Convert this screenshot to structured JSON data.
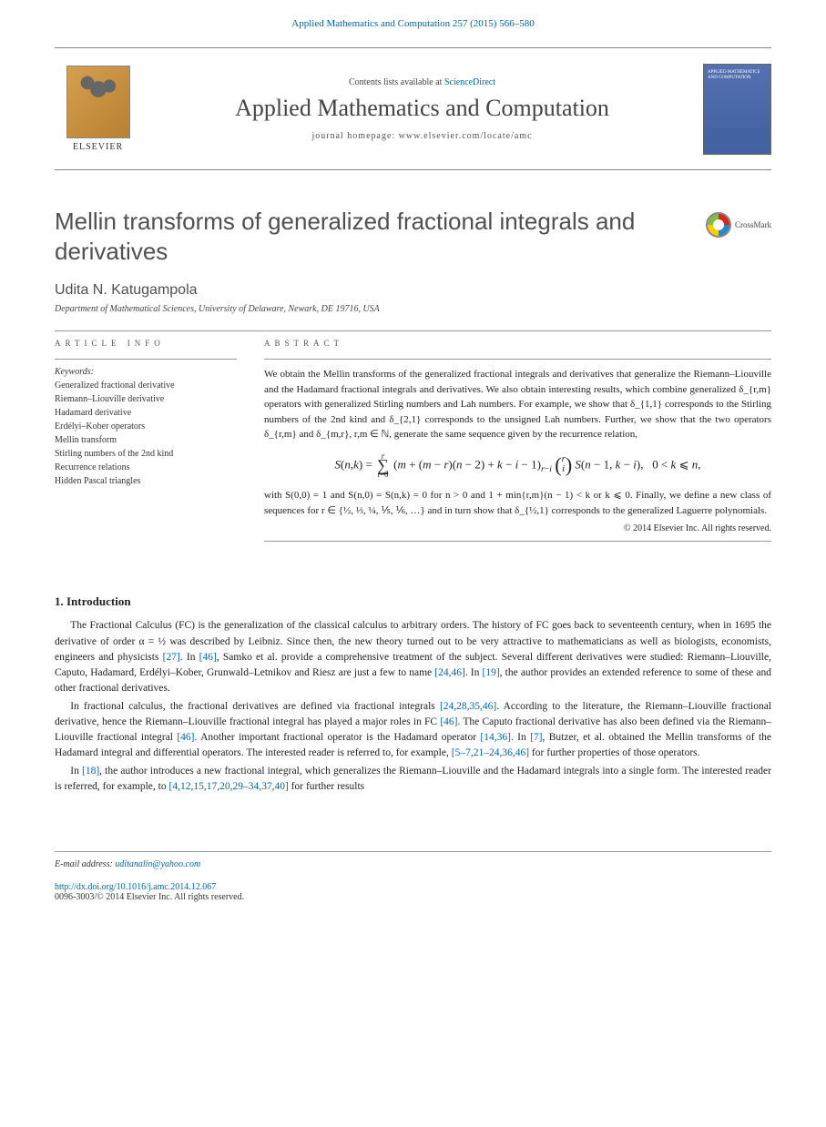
{
  "header": {
    "citation": "Applied Mathematics and Computation 257 (2015) 566–580",
    "citation_color": "#0066aa"
  },
  "masthead": {
    "publisher_name": "ELSEVIER",
    "contents_prefix": "Contents lists available at ",
    "contents_link": "ScienceDirect",
    "journal_name": "Applied Mathematics and Computation",
    "homepage_label": "journal homepage: www.elsevier.com/locate/amc",
    "cover_text_top": "APPLIED MATHEMATICS",
    "cover_text_mid": "AND COMPUTATION"
  },
  "title": "Mellin transforms of generalized fractional integrals and derivatives",
  "crossmark_label": "CrossMark",
  "author": "Udita N. Katugampola",
  "affiliation": "Department of Mathematical Sciences, University of Delaware, Newark, DE 19716, USA",
  "labels": {
    "article_info": "ARTICLE INFO",
    "abstract": "ABSTRACT",
    "keywords_head": "Keywords:"
  },
  "keywords": [
    "Generalized fractional derivative",
    "Riemann–Liouville derivative",
    "Hadamard derivative",
    "Erdélyi–Kober operators",
    "Mellin transform",
    "Stirling numbers of the 2nd kind",
    "Recurrence relations",
    "Hidden Pascal triangles"
  ],
  "abstract": {
    "p1": "We obtain the Mellin transforms of the generalized fractional integrals and derivatives that generalize the Riemann–Liouville and the Hadamard fractional integrals and derivatives. We also obtain interesting results, which combine generalized δ_{r,m} operators with generalized Stirling numbers and Lah numbers. For example, we show that δ_{1,1} corresponds to the Stirling numbers of the 2nd kind and δ_{2,1} corresponds to the unsigned Lah numbers. Further, we show that the two operators δ_{r,m} and δ_{m,r}, r,m ∈ ℕ, generate the same sequence given by the recurrence relation,",
    "equation": "S(n,k) = Σ_{i=0}^{r} (m + (m − r)(n − 2) + k − i − 1)_{r−i} ( r  i ) S(n − 1, k − i),   0 < k ⩽ n,",
    "p2": "with S(0,0) = 1 and S(n,0) = S(n,k) = 0 for n > 0 and 1 + min{r,m}(n − 1) < k or k ⩽ 0. Finally, we define a new class of sequences for r ∈ {½, ⅓, ¼, ⅕, ⅙, …} and in turn show that δ_{½,1} corresponds to the generalized Laguerre polynomials.",
    "copyright": "© 2014 Elsevier Inc. All rights reserved."
  },
  "body": {
    "heading": "1. Introduction",
    "p1_a": "The Fractional Calculus (FC) is the generalization of the classical calculus to arbitrary orders. The history of FC goes back to seventeenth century, when in 1695 the derivative of order α = ½ was described by Leibniz. Since then, the new theory turned out to be very attractive to mathematicians as well as biologists, economists, engineers and physicists ",
    "p1_cite1": "[27]",
    "p1_b": ". In ",
    "p1_cite2": "[46]",
    "p1_c": ", Samko et al. provide a comprehensive treatment of the subject. Several different derivatives were studied: Riemann–Liouville, Caputo, Hadamard, Erdélyi–Kober, Grunwald–Letnikov and Riesz are just a few to name ",
    "p1_cite3": "[24,46]",
    "p1_d": ". In ",
    "p1_cite4": "[19]",
    "p1_e": ", the author provides an extended reference to some of these and other fractional derivatives.",
    "p2_a": "In fractional calculus, the fractional derivatives are defined via fractional integrals ",
    "p2_cite1": "[24,28,35,46]",
    "p2_b": ". According to the literature, the Riemann–Liouville fractional derivative, hence the Riemann–Liouville fractional integral has played a major roles in FC ",
    "p2_cite2": "[46]",
    "p2_c": ". The Caputo fractional derivative has also been defined via the Riemann–Liouville fractional integral ",
    "p2_cite3": "[46]",
    "p2_d": ". Another important fractional operator is the Hadamard operator ",
    "p2_cite4": "[14,36]",
    "p2_e": ". In ",
    "p2_cite5": "[7]",
    "p2_f": ", Butzer, et al. obtained the Mellin transforms of the Hadamard integral and differential operators. The interested reader is referred to, for example, ",
    "p2_cite6": "[5–7,21–24,36,46]",
    "p2_g": " for further properties of those operators.",
    "p3_a": "In ",
    "p3_cite1": "[18]",
    "p3_b": ", the author introduces a new fractional integral, which generalizes the Riemann–Liouville and the Hadamard integrals into a single form. The interested reader is referred, for example, to ",
    "p3_cite2": "[4,12,15,17,20,29–34,37,40]",
    "p3_c": " for further results"
  },
  "footer": {
    "email_label": "E-mail address: ",
    "email": "uditanalin@yahoo.com",
    "doi": "http://dx.doi.org/10.1016/j.amc.2014.12.067",
    "issn_line": "0096-3003/© 2014 Elsevier Inc. All rights reserved."
  },
  "colors": {
    "link": "#0066aa",
    "text": "#222222",
    "heading_gray": "#505050",
    "rule": "#999999"
  }
}
